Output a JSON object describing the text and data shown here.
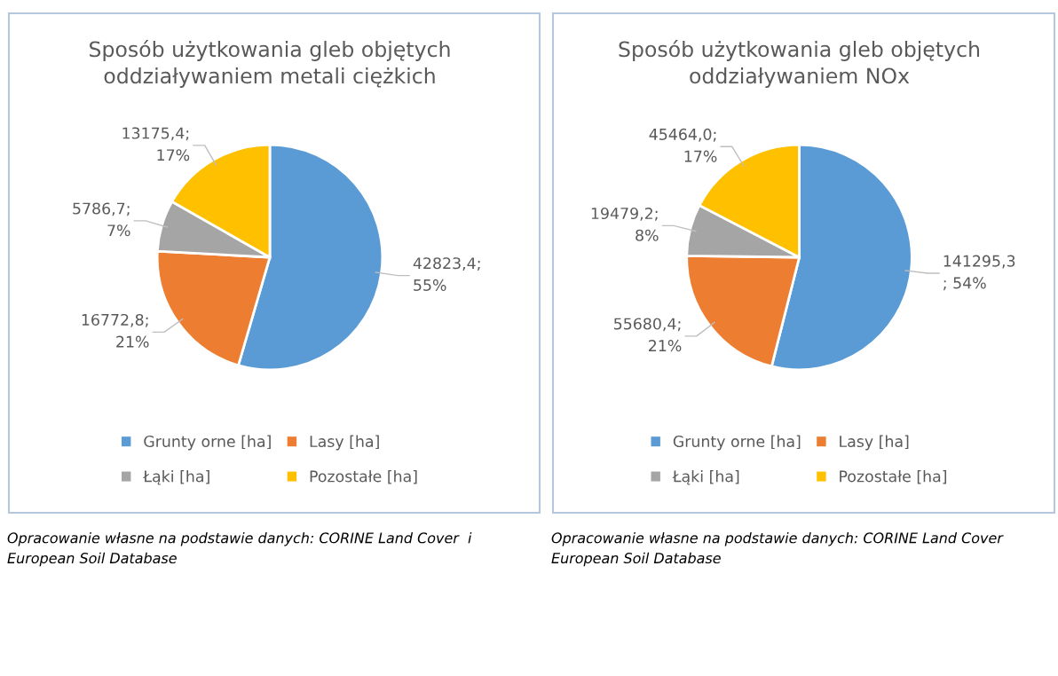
{
  "chart_data": [
    {
      "type": "pie",
      "title": "Sposób użytkowania gleb objętych\noddziaływaniem metali ciężkich",
      "categories": [
        "Grunty orne [ha]",
        "Lasy [ha]",
        "Łąki [ha]",
        "Pozostałe [ha]"
      ],
      "values": [
        42823.4,
        16772.8,
        5786.7,
        13175.4
      ],
      "colors": [
        "#5b9bd5",
        "#ed7d31",
        "#a5a5a5",
        "#ffc000"
      ],
      "value_labels": [
        "42823,4;\n55%",
        "16772,8;\n21%",
        "5786,7;\n7%",
        "13175,4;\n17%"
      ],
      "legend": "bottom",
      "annotations": [
        "Opracowanie własne na podstawie danych: CORINE Land Cover  i\nEuropean Soil Database"
      ]
    },
    {
      "type": "pie",
      "title": "Sposób użytkowania gleb objętych\noddziaływaniem NOx",
      "categories": [
        "Grunty orne [ha]",
        "Lasy [ha]",
        "Łąki [ha]",
        "Pozostałe [ha]"
      ],
      "values": [
        141295.3,
        55680.4,
        19479.2,
        45464.0
      ],
      "colors": [
        "#5b9bd5",
        "#ed7d31",
        "#a5a5a5",
        "#ffc000"
      ],
      "value_labels": [
        "141295,3\n; 54%",
        "55680,4;\n21%",
        "19479,2;\n8%",
        "45464,0;\n17%"
      ],
      "legend": "bottom",
      "annotations": [
        "Opracowanie własne na podstawie danych: CORINE Land Cover\nEuropean Soil Database"
      ]
    }
  ]
}
